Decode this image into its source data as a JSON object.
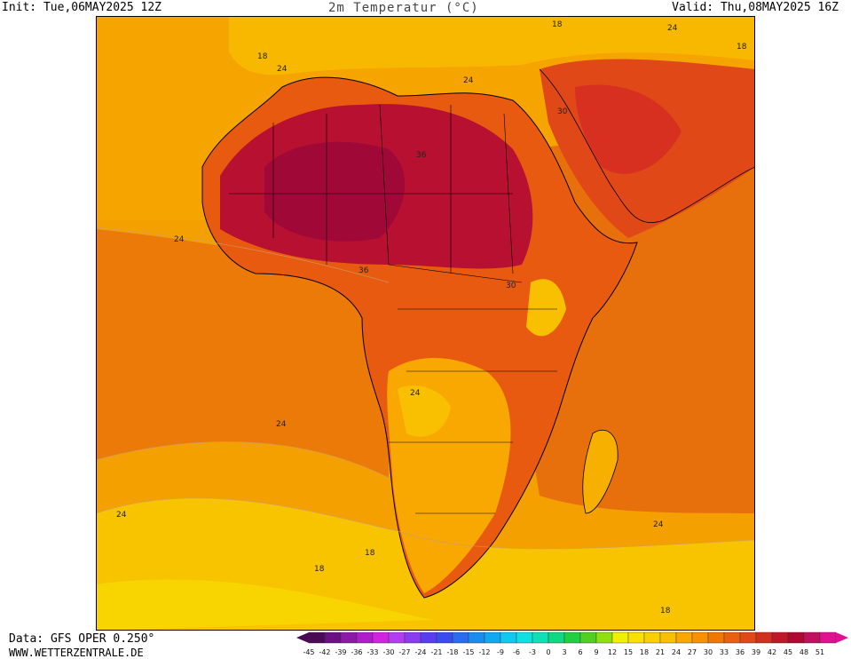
{
  "header": {
    "init_label": "Init: Tue,06MAY2025 12Z",
    "title": "2m Temperatur (°C)",
    "valid_label": "Valid: Thu,08MAY2025 16Z"
  },
  "footer": {
    "data_source": "Data: GFS OPER 0.250°",
    "website": "WWW.WETTERZENTRALE.DE"
  },
  "map": {
    "region": "Africa",
    "contour_labels": [
      {
        "id": "c1",
        "text": "18"
      },
      {
        "id": "c2",
        "text": "24"
      },
      {
        "id": "c3",
        "text": "18"
      },
      {
        "id": "c4",
        "text": "24"
      },
      {
        "id": "c5",
        "text": "24"
      },
      {
        "id": "c6",
        "text": "18"
      },
      {
        "id": "c7",
        "text": "30"
      },
      {
        "id": "c8",
        "text": "36"
      },
      {
        "id": "c9",
        "text": "24"
      },
      {
        "id": "c10",
        "text": "36"
      },
      {
        "id": "c11",
        "text": "30"
      },
      {
        "id": "c12",
        "text": "24"
      },
      {
        "id": "c13",
        "text": "24"
      },
      {
        "id": "c14",
        "text": "24"
      },
      {
        "id": "c15",
        "text": "18"
      },
      {
        "id": "c16",
        "text": "18"
      },
      {
        "id": "c17",
        "text": "24"
      },
      {
        "id": "c18",
        "text": "18"
      }
    ]
  },
  "legend": {
    "values": [
      "-45",
      "-42",
      "-39",
      "-36",
      "-33",
      "-30",
      "-27",
      "-24",
      "-21",
      "-18",
      "-15",
      "-12",
      "-9",
      "-6",
      "-3",
      "0",
      "3",
      "6",
      "9",
      "12",
      "15",
      "18",
      "21",
      "24",
      "27",
      "30",
      "33",
      "36",
      "39",
      "42",
      "45",
      "48",
      "51"
    ],
    "colors": [
      "#4b0a55",
      "#6a1082",
      "#8c18a8",
      "#b01ccc",
      "#d024e0",
      "#b43cf0",
      "#8a3cf0",
      "#5a3cf0",
      "#3a4cf0",
      "#2a6cf0",
      "#1a8cf0",
      "#10a8f0",
      "#10c8f0",
      "#10e0e0",
      "#10e0b4",
      "#10d880",
      "#20d040",
      "#50d020",
      "#90e010",
      "#f0f000",
      "#f8e000",
      "#f8d000",
      "#f8c000",
      "#f8a800",
      "#f89000",
      "#f07800",
      "#e86010",
      "#e04818",
      "#d03020",
      "#c01828",
      "#b00830",
      "#c01060",
      "#e01090"
    ]
  }
}
